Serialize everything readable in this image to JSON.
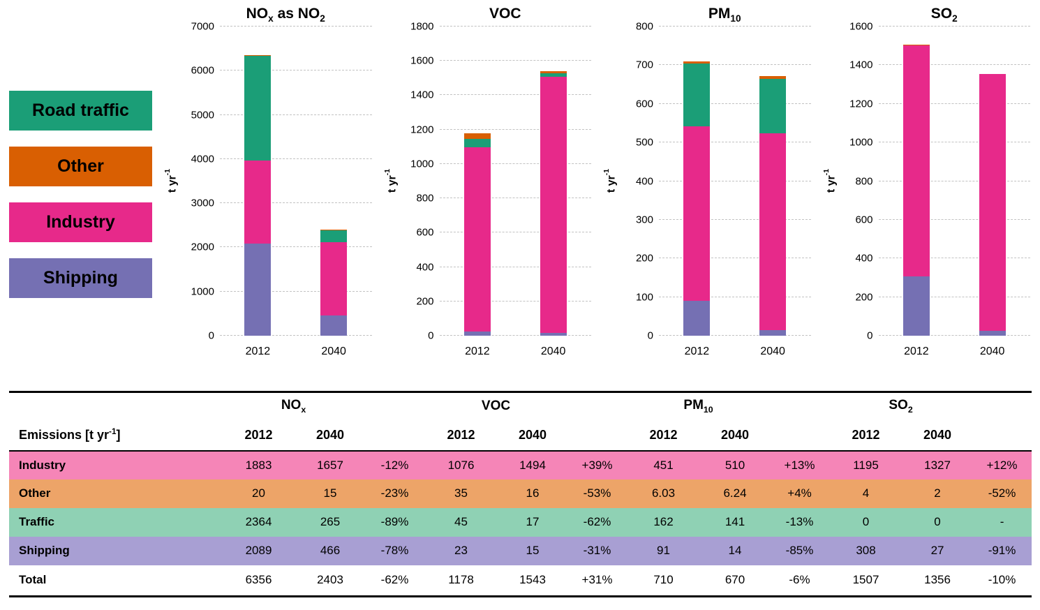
{
  "legend": {
    "items": [
      {
        "id": "road-traffic",
        "label": "Road traffic",
        "color": "#1b9e77"
      },
      {
        "id": "other",
        "label": "Other",
        "color": "#d95f02"
      },
      {
        "id": "industry",
        "label": "Industry",
        "color": "#e7298a"
      },
      {
        "id": "shipping",
        "label": "Shipping",
        "color": "#7570b3"
      }
    ]
  },
  "chart_data": [
    {
      "type": "bar",
      "stacked": true,
      "id": "nox",
      "title": "NOx as NO2",
      "title_parts": [
        {
          "t": "NO"
        },
        {
          "t": "x",
          "sub": true
        },
        {
          "t": " as NO"
        },
        {
          "t": "2",
          "sub": true
        }
      ],
      "ylabel": "t yr⁻¹",
      "ylabel_parts": [
        {
          "t": "t yr"
        },
        {
          "t": "-1",
          "sup": true
        }
      ],
      "categories": [
        "2012",
        "2040"
      ],
      "ylim": [
        0,
        7000
      ],
      "ytick_step": 1000,
      "grid": "dashed-horizontal",
      "legend_position": "left-outside",
      "series": [
        {
          "name": "Shipping",
          "color": "#7570b3",
          "values": [
            2089,
            466
          ]
        },
        {
          "name": "Industry",
          "color": "#e7298a",
          "values": [
            1883,
            1657
          ]
        },
        {
          "name": "Road traffic",
          "color": "#1b9e77",
          "values": [
            2364,
            265
          ]
        },
        {
          "name": "Other",
          "color": "#d95f02",
          "values": [
            20,
            15
          ]
        }
      ],
      "totals": [
        6356,
        2403
      ]
    },
    {
      "type": "bar",
      "stacked": true,
      "id": "voc",
      "title": "VOC",
      "title_parts": [
        {
          "t": "VOC"
        }
      ],
      "ylabel": "t yr⁻¹",
      "ylabel_parts": [
        {
          "t": "t yr"
        },
        {
          "t": "-1",
          "sup": true
        }
      ],
      "categories": [
        "2012",
        "2040"
      ],
      "ylim": [
        0,
        1800
      ],
      "ytick_step": 200,
      "grid": "dashed-horizontal",
      "legend_position": "left-outside",
      "series": [
        {
          "name": "Shipping",
          "color": "#7570b3",
          "values": [
            23,
            15
          ]
        },
        {
          "name": "Industry",
          "color": "#e7298a",
          "values": [
            1076,
            1494
          ]
        },
        {
          "name": "Road traffic",
          "color": "#1b9e77",
          "values": [
            45,
            17
          ]
        },
        {
          "name": "Other",
          "color": "#d95f02",
          "values": [
            35,
            16
          ]
        }
      ],
      "totals": [
        1178,
        1543
      ]
    },
    {
      "type": "bar",
      "stacked": true,
      "id": "pm10",
      "title": "PM10",
      "title_parts": [
        {
          "t": "PM"
        },
        {
          "t": "10",
          "sub": true
        }
      ],
      "ylabel": "t yr⁻¹",
      "ylabel_parts": [
        {
          "t": "t yr"
        },
        {
          "t": "-1",
          "sup": true
        }
      ],
      "categories": [
        "2012",
        "2040"
      ],
      "ylim": [
        0,
        800
      ],
      "ytick_step": 100,
      "grid": "dashed-horizontal",
      "legend_position": "left-outside",
      "series": [
        {
          "name": "Shipping",
          "color": "#7570b3",
          "values": [
            91,
            14
          ]
        },
        {
          "name": "Industry",
          "color": "#e7298a",
          "values": [
            451,
            510
          ]
        },
        {
          "name": "Road traffic",
          "color": "#1b9e77",
          "values": [
            162,
            141
          ]
        },
        {
          "name": "Other",
          "color": "#d95f02",
          "values": [
            6.03,
            6.24
          ]
        }
      ],
      "totals": [
        710,
        670
      ]
    },
    {
      "type": "bar",
      "stacked": true,
      "id": "so2",
      "title": "SO2",
      "title_parts": [
        {
          "t": "SO"
        },
        {
          "t": "2",
          "sub": true
        }
      ],
      "ylabel": "t yr⁻¹",
      "ylabel_parts": [
        {
          "t": "t yr"
        },
        {
          "t": "-1",
          "sup": true
        }
      ],
      "categories": [
        "2012",
        "2040"
      ],
      "ylim": [
        0,
        1600
      ],
      "ytick_step": 200,
      "grid": "dashed-horizontal",
      "legend_position": "left-outside",
      "series": [
        {
          "name": "Shipping",
          "color": "#7570b3",
          "values": [
            308,
            27
          ]
        },
        {
          "name": "Industry",
          "color": "#e7298a",
          "values": [
            1195,
            1327
          ]
        },
        {
          "name": "Road traffic",
          "color": "#1b9e77",
          "values": [
            0,
            0
          ]
        },
        {
          "name": "Other",
          "color": "#d95f02",
          "values": [
            4,
            2
          ]
        }
      ],
      "totals": [
        1507,
        1356
      ]
    }
  ],
  "table": {
    "header_label": "Emissions [t yr⁻¹]",
    "header_label_parts": [
      {
        "t": "Emissions [t  yr"
      },
      {
        "t": "-1",
        "sup": true
      },
      {
        "t": "]"
      }
    ],
    "year_cols": [
      "2012",
      "2040"
    ],
    "groups": [
      {
        "id": "nox",
        "title": "NOx",
        "title_parts": [
          {
            "t": "NO"
          },
          {
            "t": "x",
            "sub": true
          }
        ]
      },
      {
        "id": "voc",
        "title": "VOC",
        "title_parts": [
          {
            "t": "VOC"
          }
        ]
      },
      {
        "id": "pm10",
        "title": "PM10",
        "title_parts": [
          {
            "t": "PM"
          },
          {
            "t": "10",
            "sub": true
          }
        ]
      },
      {
        "id": "so2",
        "title": "SO2",
        "title_parts": [
          {
            "t": "SO"
          },
          {
            "t": "2",
            "sub": true
          }
        ]
      }
    ],
    "rows": [
      {
        "label": "Industry",
        "bg": "#f585b7",
        "values": [
          "1883",
          "1657",
          "-12%",
          "1076",
          "1494",
          "+39%",
          "451",
          "510",
          "+13%",
          "1195",
          "1327",
          "+12%"
        ]
      },
      {
        "label": "Other",
        "bg": "#eda468",
        "values": [
          "20",
          "15",
          "-23%",
          "35",
          "16",
          "-53%",
          "6.03",
          "6.24",
          "+4%",
          "4",
          "2",
          "-52%"
        ]
      },
      {
        "label": "Traffic",
        "bg": "#8fd1b4",
        "values": [
          "2364",
          "265",
          "-89%",
          "45",
          "17",
          "-62%",
          "162",
          "141",
          "-13%",
          "0",
          "0",
          "-"
        ]
      },
      {
        "label": "Shipping",
        "bg": "#a89fd3",
        "values": [
          "2089",
          "466",
          "-78%",
          "23",
          "15",
          "-31%",
          "91",
          "14",
          "-85%",
          "308",
          "27",
          "-91%"
        ]
      },
      {
        "label": "Total",
        "bg": "#ffffff",
        "values": [
          "6356",
          "2403",
          "-62%",
          "1178",
          "1543",
          "+31%",
          "710",
          "670",
          "-6%",
          "1507",
          "1356",
          "-10%"
        ]
      }
    ]
  }
}
